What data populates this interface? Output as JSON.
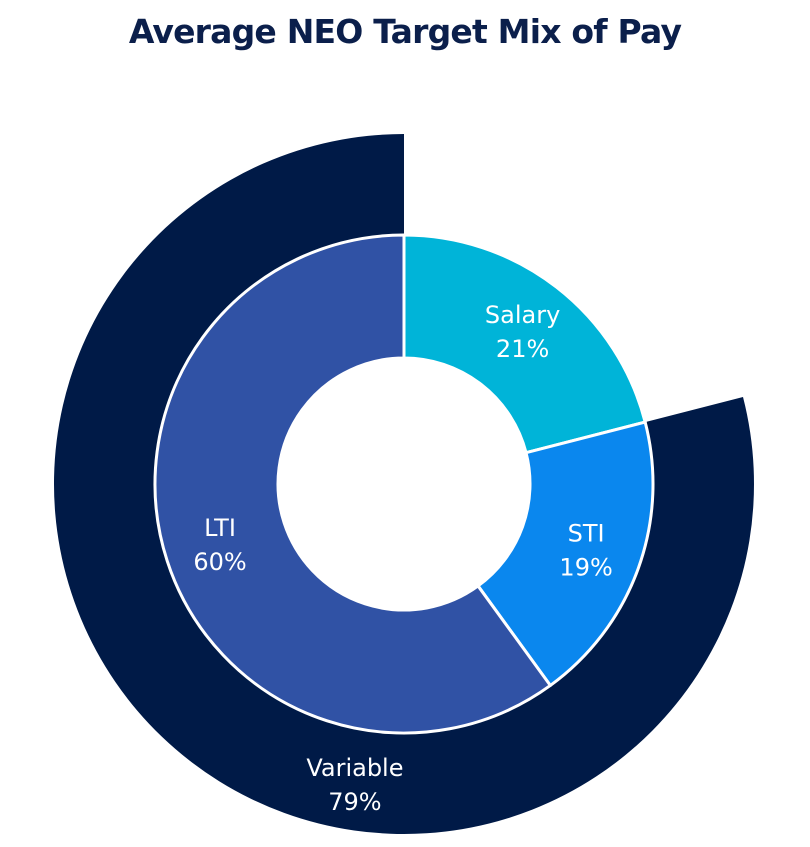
{
  "chart_data": {
    "type": "pie",
    "variant": "nested-donut",
    "title": "Average NEO Target Mix of Pay",
    "inner_ring": [
      {
        "label": "Salary",
        "value_label": "21%",
        "value": 21,
        "color": "#00b4d8"
      },
      {
        "label": "STI",
        "value_label": "19%",
        "value": 19,
        "color": "#0a87ee"
      },
      {
        "label": "LTI",
        "value_label": "60%",
        "value": 60,
        "color": "#3052a5"
      }
    ],
    "outer_ring": [
      {
        "label": "Variable",
        "value_label": "79%",
        "value": 79,
        "color": "#001a47",
        "starts_after": "Salary"
      }
    ],
    "colors": {
      "title": "#0b1f4b",
      "label_text": "#ffffff",
      "background": "#ffffff",
      "separator": "#ffffff"
    }
  }
}
